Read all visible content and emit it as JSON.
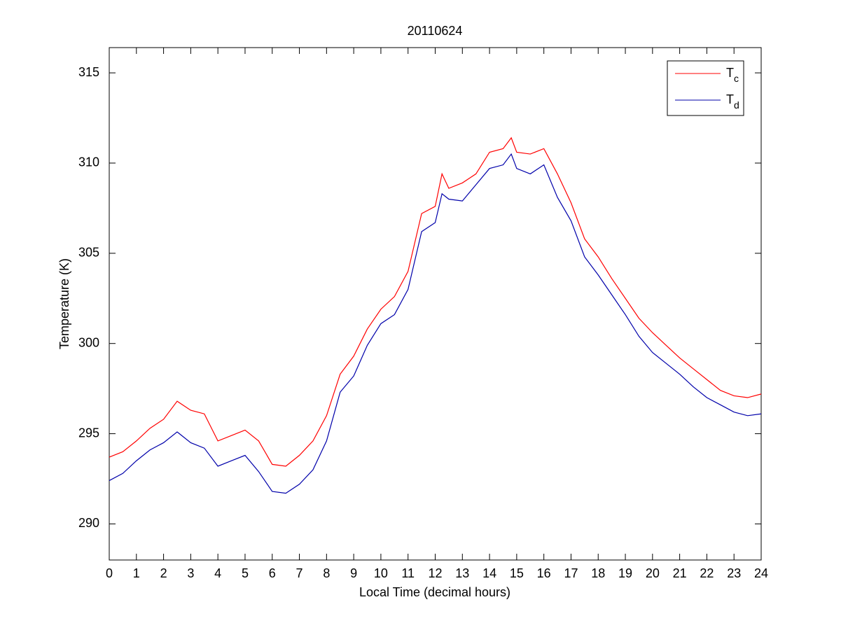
{
  "chart_data": {
    "type": "line",
    "title": "20110624",
    "x_label": "Local Time (decimal hours)",
    "y_label": "Temperature (K)",
    "x": [
      0,
      0.5,
      1,
      1.5,
      2,
      2.5,
      3,
      3.5,
      4,
      4.5,
      5,
      5.5,
      6,
      6.5,
      7,
      7.5,
      8,
      8.5,
      9,
      9.5,
      10,
      10.5,
      11,
      11.5,
      12,
      12.25,
      12.5,
      13,
      13.5,
      14,
      14.5,
      14.8,
      15,
      15.5,
      16,
      16.5,
      17,
      17.5,
      18,
      18.5,
      19,
      19.5,
      20,
      20.5,
      21,
      21.5,
      22,
      22.5,
      23,
      23.5,
      24
    ],
    "series": [
      {
        "name": "Tc",
        "color": "#ff0000",
        "values": [
          293.7,
          294.0,
          294.6,
          295.3,
          295.8,
          296.8,
          296.3,
          296.1,
          294.6,
          294.9,
          295.2,
          294.6,
          293.3,
          293.2,
          293.8,
          294.6,
          296.0,
          298.3,
          299.3,
          300.8,
          301.9,
          302.6,
          304.0,
          307.2,
          307.6,
          309.4,
          308.6,
          308.9,
          309.4,
          310.6,
          310.8,
          311.4,
          310.6,
          310.5,
          310.8,
          309.4,
          307.8,
          305.8,
          304.8,
          303.6,
          302.5,
          301.4,
          300.6,
          299.9,
          299.2,
          298.6,
          298.0,
          297.4,
          297.1,
          297.0,
          297.2
        ]
      },
      {
        "name": "Td",
        "color": "#0000aa",
        "values": [
          292.4,
          292.8,
          293.5,
          294.1,
          294.5,
          295.1,
          294.5,
          294.2,
          293.2,
          293.5,
          293.8,
          292.9,
          291.8,
          291.7,
          292.2,
          293.0,
          294.6,
          297.3,
          298.2,
          299.9,
          301.1,
          301.6,
          303.0,
          306.2,
          306.7,
          308.3,
          308.0,
          307.9,
          308.8,
          309.7,
          309.9,
          310.5,
          309.7,
          309.4,
          309.9,
          308.1,
          306.8,
          304.8,
          303.8,
          302.7,
          301.6,
          300.4,
          299.5,
          298.9,
          298.3,
          297.6,
          297.0,
          296.6,
          296.2,
          296.0,
          296.1
        ]
      }
    ],
    "xlim": [
      0,
      24
    ],
    "xticks": [
      0,
      1,
      2,
      3,
      4,
      5,
      6,
      7,
      8,
      9,
      10,
      11,
      12,
      13,
      14,
      15,
      16,
      17,
      18,
      19,
      20,
      21,
      22,
      23,
      24
    ],
    "ylim": [
      288,
      316.4
    ],
    "yticks": [
      290,
      295,
      300,
      305,
      310,
      315
    ],
    "legend": "top-right",
    "grid": false
  }
}
